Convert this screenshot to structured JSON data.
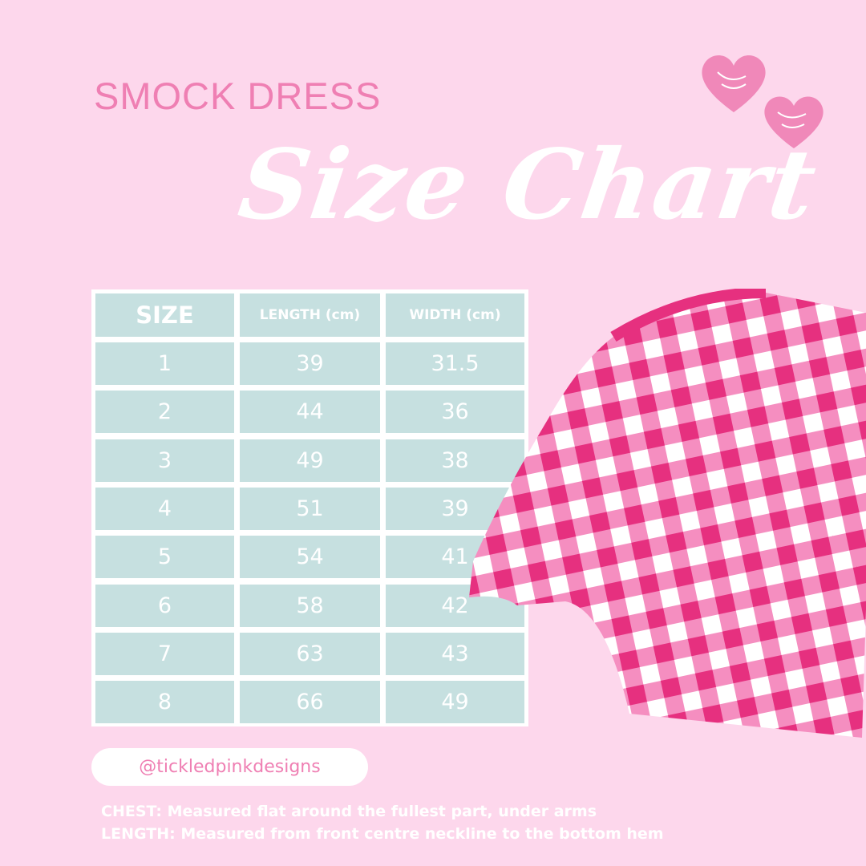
{
  "header": {
    "subtitle": "SMOCK DRESS",
    "title": "Size Chart"
  },
  "table": {
    "columns": [
      "SIZE",
      "LENGTH (cm)",
      "WIDTH (cm)"
    ],
    "rows": [
      [
        "1",
        "39",
        "31.5"
      ],
      [
        "2",
        "44",
        "36"
      ],
      [
        "3",
        "49",
        "38"
      ],
      [
        "4",
        "51",
        "39"
      ],
      [
        "5",
        "54",
        "41"
      ],
      [
        "6",
        "58",
        "42"
      ],
      [
        "7",
        "63",
        "43"
      ],
      [
        "8",
        "66",
        "49"
      ]
    ]
  },
  "handle": "@tickledpinkdesigns",
  "notes": [
    "CHEST: Measured flat around the fullest part, under arms",
    "LENGTH: Measured from front centre neckline to the bottom hem"
  ],
  "colors": {
    "background": "#fdd7ec",
    "accent": "#ef7fb3",
    "cell": "#c6e0e0"
  }
}
